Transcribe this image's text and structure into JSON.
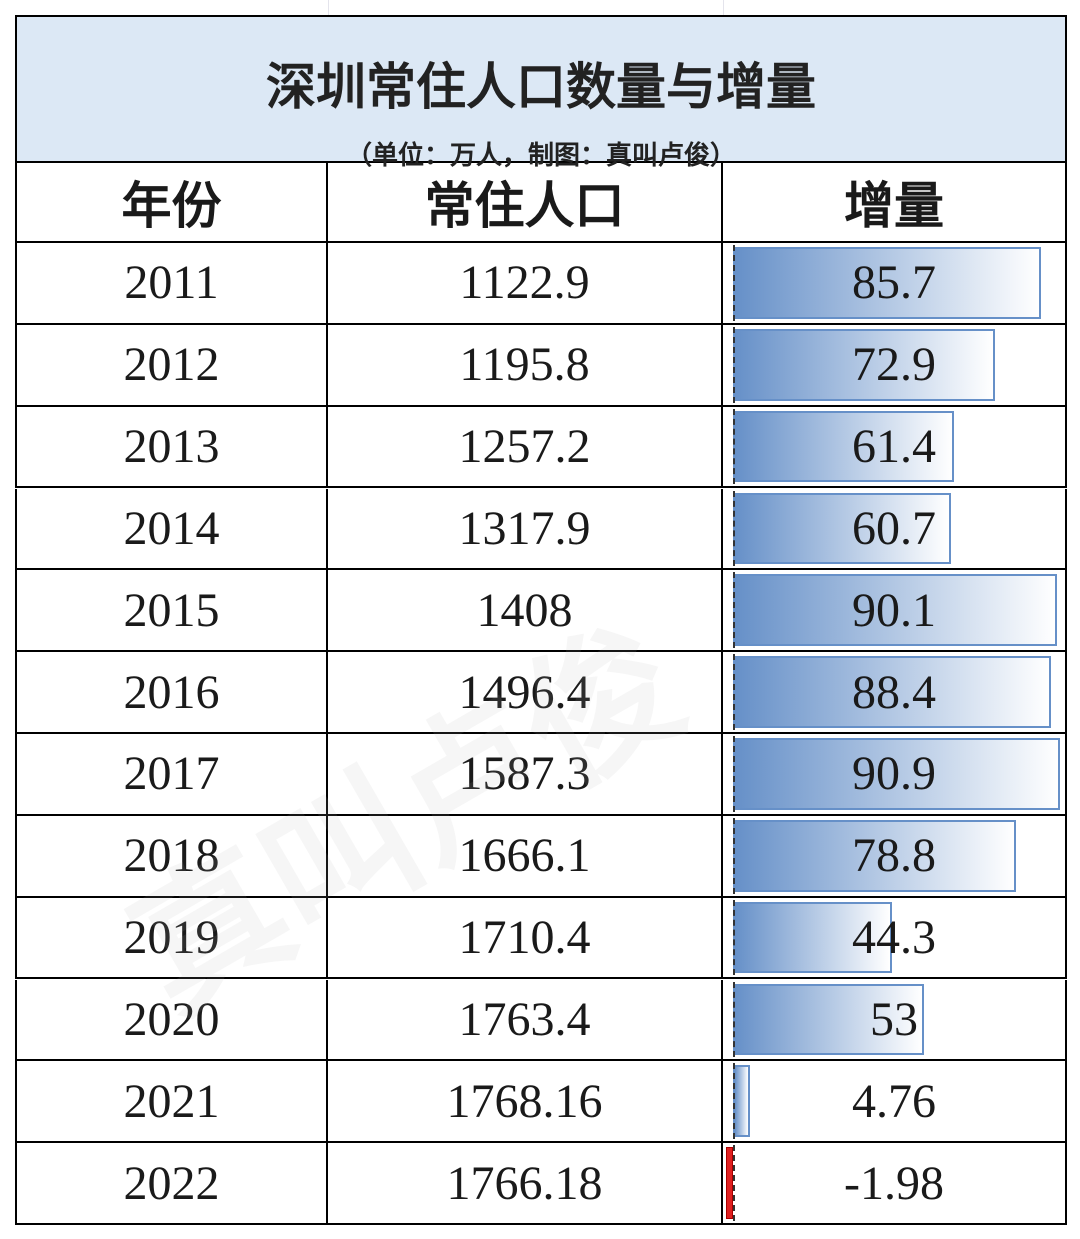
{
  "header": {
    "title": "深圳常住人口数量与增量",
    "subtitle": "（单位：万人，制图：真叫卢俊）"
  },
  "table": {
    "columns": [
      "年份",
      "常住人口",
      "增量"
    ],
    "rows": [
      [
        "2011",
        1122.9,
        85.7
      ],
      [
        "2012",
        1195.8,
        72.9
      ],
      [
        "2013",
        1257.2,
        61.4
      ],
      [
        "2014",
        1317.9,
        60.7
      ],
      [
        "2015",
        1408,
        90.1
      ],
      [
        "2016",
        1496.4,
        88.4
      ],
      [
        "2017",
        1587.3,
        90.9
      ],
      [
        "2018",
        1666.1,
        78.8
      ],
      [
        "2019",
        1710.4,
        44.3
      ],
      [
        "2020",
        1763.4,
        53
      ],
      [
        "2021",
        1768.16,
        4.76
      ],
      [
        "2022",
        1766.18,
        -1.98
      ]
    ]
  },
  "watermark": "真叫卢俊"
}
